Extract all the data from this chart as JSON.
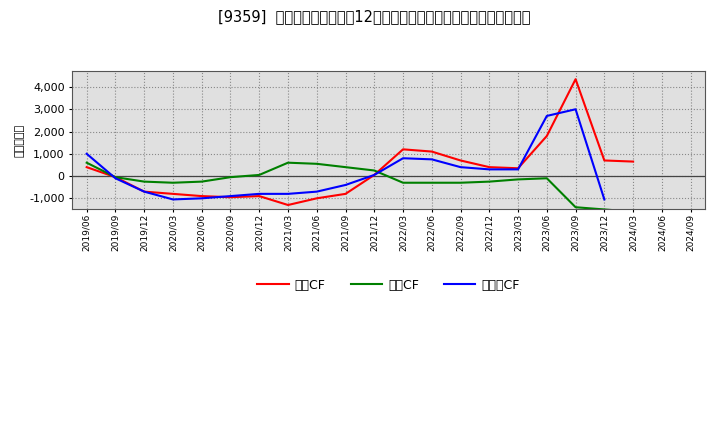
{
  "title": "[9359]  キャッシュフローの12か月移動合計の対前年同期増減額の推移",
  "ylabel": "（百万円）",
  "background_color": "#ffffff",
  "plot_background": "#e8e8e8",
  "grid_color": "#aaaaaa",
  "x_labels": [
    "2019/06",
    "2019/09",
    "2019/12",
    "2020/03",
    "2020/06",
    "2020/09",
    "2020/12",
    "2021/03",
    "2021/06",
    "2021/09",
    "2021/12",
    "2022/03",
    "2022/06",
    "2022/09",
    "2022/12",
    "2023/03",
    "2023/06",
    "2023/09",
    "2023/12",
    "2024/03",
    "2024/06",
    "2024/09"
  ],
  "operating_cf": [
    400,
    -50,
    -700,
    -800,
    -900,
    -950,
    -900,
    -1300,
    -1000,
    -800,
    50,
    1200,
    1100,
    700,
    400,
    350,
    1800,
    4350,
    700,
    650,
    null,
    null
  ],
  "investing_cf": [
    600,
    -50,
    -250,
    -300,
    -250,
    -50,
    50,
    600,
    550,
    400,
    250,
    -300,
    -300,
    -300,
    -250,
    -150,
    -100,
    -1400,
    -1500,
    -1600,
    null,
    null
  ],
  "free_cf": [
    1000,
    -100,
    -700,
    -1050,
    -1000,
    -900,
    -800,
    -800,
    -700,
    -400,
    50,
    800,
    750,
    400,
    300,
    300,
    2700,
    3000,
    -1050,
    null,
    null,
    null
  ],
  "ylim": [
    -1500,
    4700
  ],
  "yticks": [
    -1000,
    0,
    1000,
    2000,
    3000,
    4000
  ],
  "line_colors": {
    "operating": "#ff0000",
    "investing": "#008000",
    "free": "#0000ff"
  },
  "legend_labels": {
    "operating": "営業CF",
    "investing": "投賃CF",
    "free": "フリーCF"
  }
}
